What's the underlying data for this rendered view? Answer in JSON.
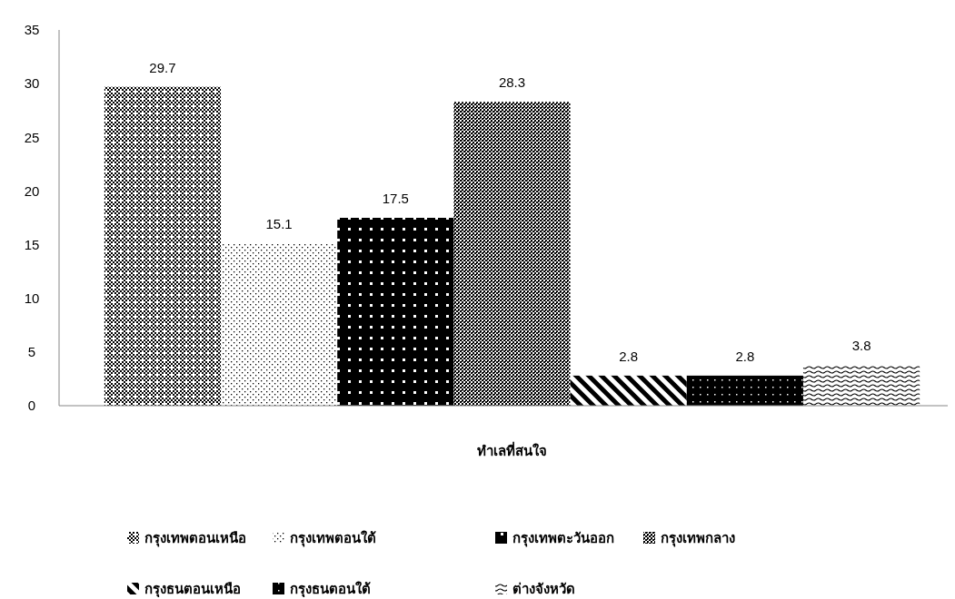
{
  "chart_data": {
    "type": "bar",
    "categories": [
      null
    ],
    "xlabel": "ทำเลที่สนใจ",
    "series": [
      {
        "name": "กรุงเทพตอนเหนือ",
        "color": "#000000",
        "values": [
          29.7
        ]
      },
      {
        "name": "กรุงเทพตอนใต้",
        "color": "#000000",
        "values": [
          15.1
        ]
      },
      {
        "name": "กรุงเทพตะวันออก",
        "color": "#000000",
        "values": [
          17.5
        ]
      },
      {
        "name": "กรุงเทพกลาง",
        "color": "#000000",
        "values": [
          28.3
        ]
      },
      {
        "name": "กรุงธนตอนเหนือ",
        "color": "#000000",
        "values": [
          2.8
        ]
      },
      {
        "name": "กรุงธนตอนใต้",
        "color": "#000000",
        "values": [
          2.8
        ]
      },
      {
        "name": "ต่างจังหวัด",
        "color": "#000000",
        "values": [
          3.8
        ]
      }
    ],
    "ylim": [
      0,
      35
    ],
    "yticks": [
      0,
      5,
      10,
      15,
      20,
      25,
      30,
      35
    ],
    "data_labels": true,
    "legend": "bottom",
    "grid": false
  }
}
